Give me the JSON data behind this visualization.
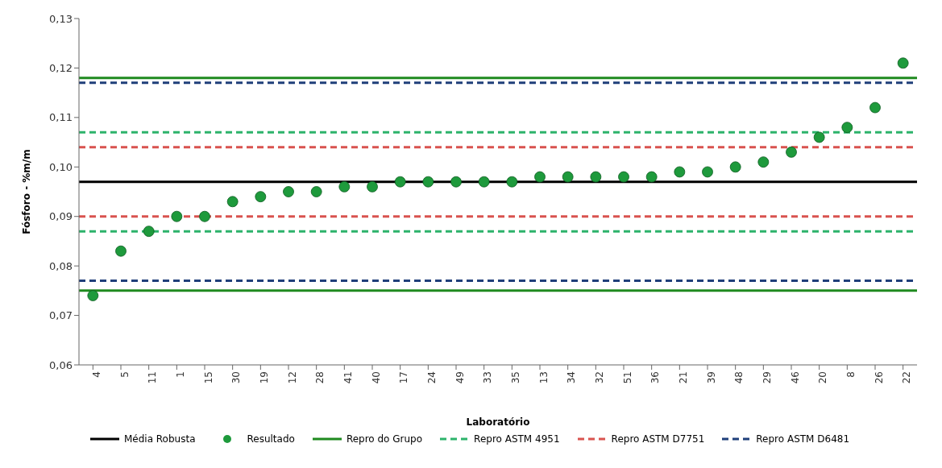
{
  "chart_data": {
    "type": "scatter",
    "xlabel": "Laboratório",
    "ylabel": "Fósforo - %m/m",
    "categories": [
      "4",
      "5",
      "11",
      "1",
      "15",
      "30",
      "19",
      "12",
      "28",
      "41",
      "40",
      "17",
      "24",
      "49",
      "33",
      "35",
      "13",
      "34",
      "32",
      "51",
      "36",
      "21",
      "39",
      "48",
      "29",
      "46",
      "20",
      "8",
      "26",
      "22"
    ],
    "series": [
      {
        "name": "Resultado",
        "color": "#1e9a3c",
        "values": [
          0.074,
          0.083,
          0.087,
          0.09,
          0.09,
          0.093,
          0.094,
          0.095,
          0.095,
          0.096,
          0.096,
          0.097,
          0.097,
          0.097,
          0.097,
          0.097,
          0.098,
          0.098,
          0.098,
          0.098,
          0.098,
          0.099,
          0.099,
          0.1,
          0.101,
          0.103,
          0.106,
          0.108,
          0.112,
          0.121
        ]
      }
    ],
    "ylim": [
      0.06,
      0.13
    ],
    "yticks": [
      {
        "value": 0.06,
        "label": "0,06"
      },
      {
        "value": 0.07,
        "label": "0,07"
      },
      {
        "value": 0.08,
        "label": "0,08"
      },
      {
        "value": 0.09,
        "label": "0,09"
      },
      {
        "value": 0.1,
        "label": "0,10"
      },
      {
        "value": 0.11,
        "label": "0,11"
      },
      {
        "value": 0.12,
        "label": "0,12"
      },
      {
        "value": 0.13,
        "label": "0,13"
      }
    ],
    "ref_lines": [
      {
        "axis": "y",
        "value": 0.097,
        "label": "Média Robusta",
        "color": "#000000",
        "line_style": "solid"
      },
      {
        "axis": "y",
        "value": 0.118,
        "label": "Repro do Grupo",
        "color": "#1f8a1f",
        "line_style": "solid"
      },
      {
        "axis": "y",
        "value": 0.075,
        "color": "#1f8a1f",
        "line_style": "solid"
      },
      {
        "axis": "y",
        "value": 0.107,
        "label": "Repro ASTM 4951",
        "color": "#2db36b",
        "line_style": "dashed"
      },
      {
        "axis": "y",
        "value": 0.087,
        "color": "#2db36b",
        "line_style": "dashed"
      },
      {
        "axis": "y",
        "value": 0.104,
        "label": "Repro ASTM D7751",
        "color": "#d9534f",
        "line_style": "dashed"
      },
      {
        "axis": "y",
        "value": 0.09,
        "color": "#d9534f",
        "line_style": "dashed"
      },
      {
        "axis": "y",
        "value": 0.117,
        "label": "Repro ASTM D6481",
        "color": "#1f3f7a",
        "line_style": "dashed"
      },
      {
        "axis": "y",
        "value": 0.077,
        "color": "#1f3f7a",
        "line_style": "dashed"
      }
    ],
    "marker": "circle",
    "grid": false,
    "legend": "bottom"
  }
}
